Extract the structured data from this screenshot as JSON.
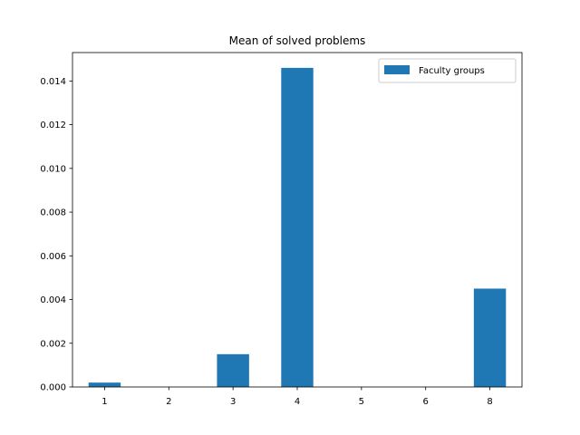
{
  "chart_data": {
    "type": "bar",
    "title": "Mean of solved problems",
    "xlabel": "",
    "ylabel": "",
    "categories": [
      "1",
      "2",
      "3",
      "4",
      "5",
      "6",
      "8"
    ],
    "series": [
      {
        "name": "Faculty groups",
        "color": "#1f77b4",
        "values": [
          0.0002,
          0.0,
          0.0015,
          0.0146,
          0.0,
          0.0,
          0.0045
        ]
      }
    ],
    "ylim": [
      0,
      0.0153
    ],
    "yticks": [
      "0.000",
      "0.002",
      "0.004",
      "0.006",
      "0.008",
      "0.010",
      "0.012",
      "0.014"
    ],
    "grid": false,
    "legend_position": "top-right"
  }
}
